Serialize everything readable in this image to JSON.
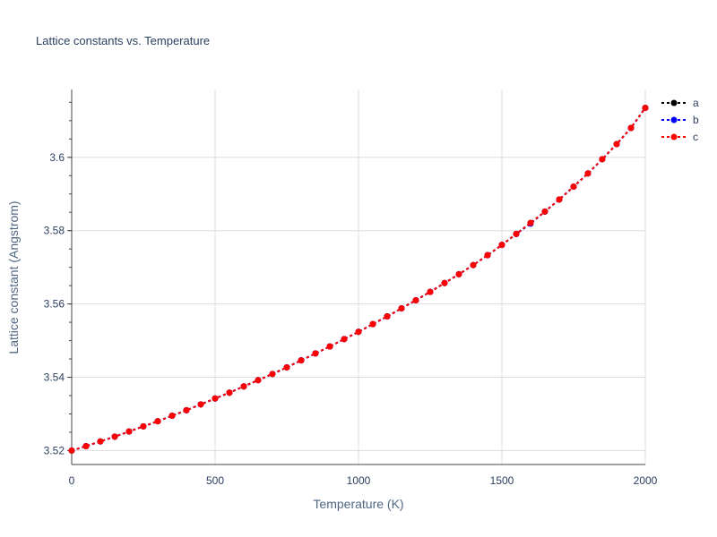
{
  "chart_data": {
    "type": "line",
    "title": "Lattice constants vs. Temperature",
    "xlabel": "Temperature (K)",
    "ylabel": "Lattice constant (Angstrom)",
    "xlim": [
      0,
      2000
    ],
    "ylim": [
      3.5162,
      3.6185
    ],
    "x_ticks": [
      0,
      500,
      1000,
      1500,
      2000
    ],
    "x_tick_labels": [
      "0",
      "500",
      "1000",
      "1500",
      "2000"
    ],
    "y_ticks": [
      3.52,
      3.54,
      3.56,
      3.58,
      3.6
    ],
    "y_tick_labels": [
      "3.52",
      "3.54",
      "3.56",
      "3.58",
      "3.6"
    ],
    "grid": true,
    "legend_position": "top-right",
    "x": [
      0,
      50,
      100,
      150,
      200,
      250,
      300,
      350,
      400,
      450,
      500,
      550,
      600,
      650,
      700,
      750,
      800,
      850,
      900,
      950,
      1000,
      1050,
      1100,
      1150,
      1200,
      1250,
      1300,
      1350,
      1400,
      1450,
      1500,
      1550,
      1600,
      1650,
      1700,
      1750,
      1800,
      1850,
      1900,
      1950,
      2000
    ],
    "series": [
      {
        "name": "a",
        "color": "#000000",
        "values": [
          3.52,
          3.5212,
          3.5225,
          3.5238,
          3.5252,
          3.5266,
          3.528,
          3.5295,
          3.531,
          3.5326,
          3.5342,
          3.5358,
          3.5375,
          3.5392,
          3.5409,
          3.5427,
          3.5446,
          3.5465,
          3.5484,
          3.5504,
          3.5524,
          3.5545,
          3.5566,
          3.5588,
          3.561,
          3.5633,
          3.5657,
          3.5681,
          3.5706,
          3.5733,
          3.5761,
          3.5791,
          3.5821,
          3.5852,
          3.5885,
          3.592,
          3.5956,
          3.5995,
          3.6036,
          3.608,
          3.6135
        ]
      },
      {
        "name": "b",
        "color": "#0000ff",
        "values": [
          3.52,
          3.5212,
          3.5225,
          3.5238,
          3.5252,
          3.5266,
          3.528,
          3.5295,
          3.531,
          3.5326,
          3.5342,
          3.5358,
          3.5375,
          3.5392,
          3.5409,
          3.5427,
          3.5446,
          3.5465,
          3.5484,
          3.5504,
          3.5524,
          3.5545,
          3.5566,
          3.5588,
          3.561,
          3.5633,
          3.5657,
          3.5681,
          3.5706,
          3.5733,
          3.5761,
          3.5791,
          3.5819,
          3.5852,
          3.5885,
          3.592,
          3.5956,
          3.5995,
          3.6036,
          3.608,
          3.6135
        ]
      },
      {
        "name": "c",
        "color": "#ff0000",
        "values": [
          3.52,
          3.5212,
          3.5225,
          3.5238,
          3.5252,
          3.5266,
          3.528,
          3.5295,
          3.531,
          3.5326,
          3.5342,
          3.5358,
          3.5375,
          3.5392,
          3.5409,
          3.5427,
          3.5446,
          3.5465,
          3.5484,
          3.5504,
          3.5524,
          3.5545,
          3.5566,
          3.5588,
          3.561,
          3.5633,
          3.5657,
          3.5681,
          3.5706,
          3.5733,
          3.5761,
          3.5791,
          3.5821,
          3.5852,
          3.5885,
          3.592,
          3.5956,
          3.5995,
          3.6036,
          3.608,
          3.6135
        ]
      }
    ]
  }
}
